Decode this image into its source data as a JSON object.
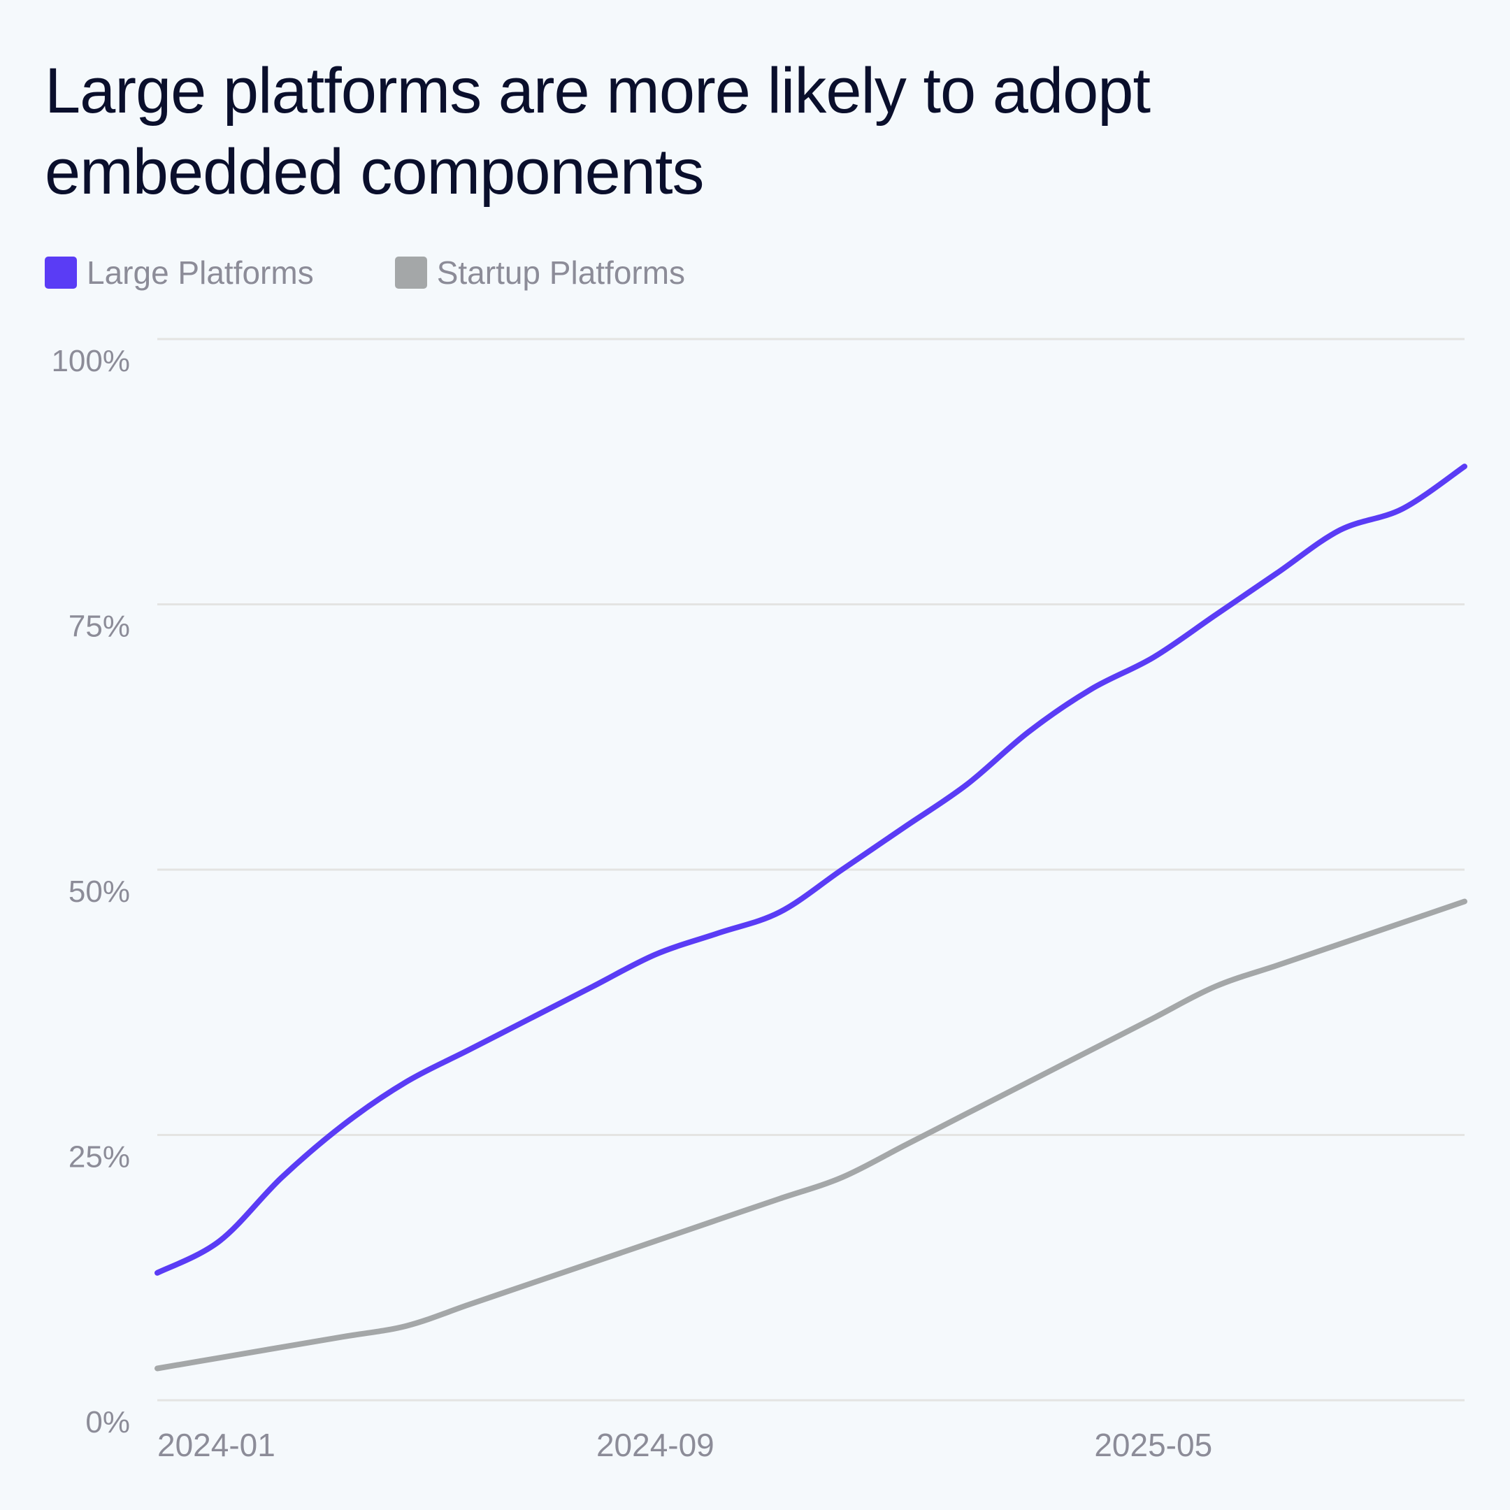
{
  "chart_data": {
    "type": "line",
    "title": "Large platforms are more likely to adopt embedded components",
    "xlabel": "",
    "ylabel": "",
    "ylim": [
      0,
      100
    ],
    "y_ticks": [
      "0%",
      "25%",
      "50%",
      "75%",
      "100%"
    ],
    "y_tick_values": [
      0,
      25,
      50,
      75,
      100
    ],
    "x_ticks": [
      "2024-01",
      "2024-09",
      "2025-05"
    ],
    "x_tick_index": [
      0,
      8,
      16
    ],
    "x": [
      "2024-01",
      "2024-02",
      "2024-03",
      "2024-04",
      "2024-05",
      "2024-06",
      "2024-07",
      "2024-08",
      "2024-09",
      "2024-10",
      "2024-11",
      "2024-12",
      "2025-01",
      "2025-02",
      "2025-03",
      "2025-04",
      "2025-05",
      "2025-06",
      "2025-07",
      "2025-08",
      "2025-09",
      "2025-10"
    ],
    "xlim": [
      0,
      21
    ],
    "grid": true,
    "legend_position": "top-left",
    "series": [
      {
        "name": "Large Platforms",
        "color": "#5a3cf5",
        "values": [
          12,
          15,
          21,
          26,
          30,
          33,
          36,
          39,
          42,
          44,
          46,
          50,
          54,
          58,
          63,
          67,
          70,
          74,
          78,
          82,
          84,
          88
        ]
      },
      {
        "name": "Startup Platforms",
        "color": "#a4a7a8",
        "values": [
          3,
          4,
          5,
          6,
          7,
          9,
          11,
          13,
          15,
          17,
          19,
          21,
          24,
          27,
          30,
          33,
          36,
          39,
          41,
          43,
          45,
          47
        ]
      }
    ]
  }
}
